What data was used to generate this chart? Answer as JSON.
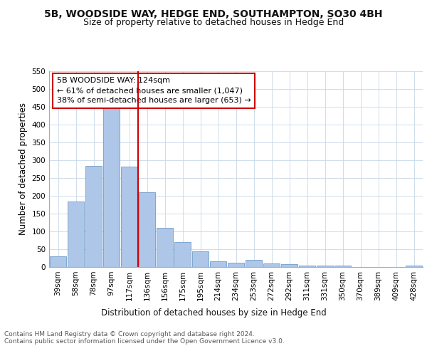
{
  "title1": "5B, WOODSIDE WAY, HEDGE END, SOUTHAMPTON, SO30 4BH",
  "title2": "Size of property relative to detached houses in Hedge End",
  "xlabel": "Distribution of detached houses by size in Hedge End",
  "ylabel": "Number of detached properties",
  "categories": [
    "39sqm",
    "58sqm",
    "78sqm",
    "97sqm",
    "117sqm",
    "136sqm",
    "156sqm",
    "175sqm",
    "195sqm",
    "214sqm",
    "234sqm",
    "253sqm",
    "272sqm",
    "292sqm",
    "311sqm",
    "331sqm",
    "350sqm",
    "370sqm",
    "389sqm",
    "409sqm",
    "428sqm"
  ],
  "values": [
    30,
    185,
    285,
    450,
    283,
    210,
    110,
    70,
    45,
    16,
    13,
    20,
    10,
    8,
    5,
    5,
    4,
    0,
    0,
    0,
    5
  ],
  "bar_color": "#aec6e8",
  "bar_edge_color": "#5a8fc2",
  "vline_x": 4.5,
  "vline_color": "#cc0000",
  "annotation_text": "5B WOODSIDE WAY: 124sqm\n← 61% of detached houses are smaller (1,047)\n38% of semi-detached houses are larger (653) →",
  "annotation_box_color": "#ffffff",
  "annotation_box_edge": "#cc0000",
  "ylim": [
    0,
    550
  ],
  "yticks": [
    0,
    50,
    100,
    150,
    200,
    250,
    300,
    350,
    400,
    450,
    500,
    550
  ],
  "background_color": "#ffffff",
  "grid_color": "#c8d8e8",
  "footer_text": "Contains HM Land Registry data © Crown copyright and database right 2024.\nContains public sector information licensed under the Open Government Licence v3.0.",
  "title1_fontsize": 10,
  "title2_fontsize": 9,
  "axis_label_fontsize": 8.5,
  "tick_fontsize": 7.5,
  "annotation_fontsize": 8,
  "footer_fontsize": 6.5
}
